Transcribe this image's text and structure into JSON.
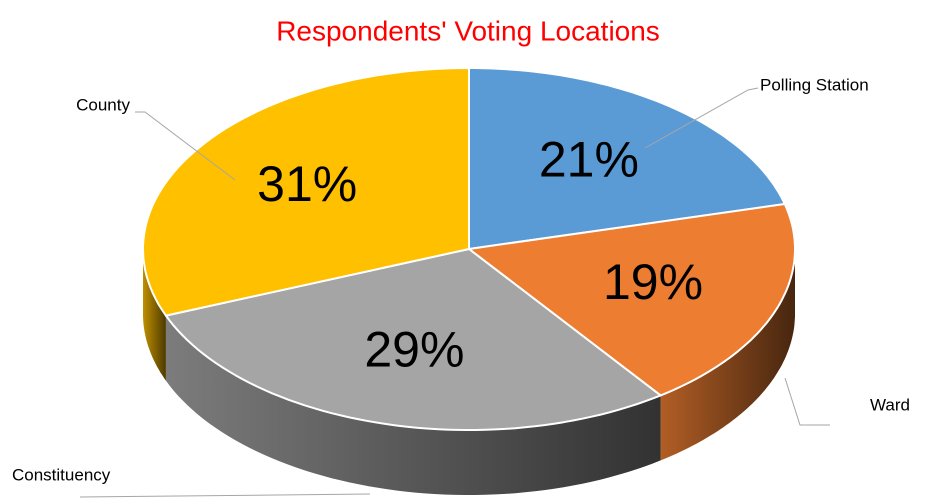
{
  "chart_data": {
    "type": "pie3d",
    "title": "Respondents' Voting Locations",
    "categories": [
      "Polling Station",
      "Ward",
      "Constituency",
      "County"
    ],
    "values": [
      21,
      19,
      29,
      31
    ],
    "value_labels": [
      "21%",
      "19%",
      "29%",
      "31%"
    ],
    "colors": [
      "#5b9bd5",
      "#ed7d31",
      "#a5a5a5",
      "#ffc000"
    ]
  }
}
